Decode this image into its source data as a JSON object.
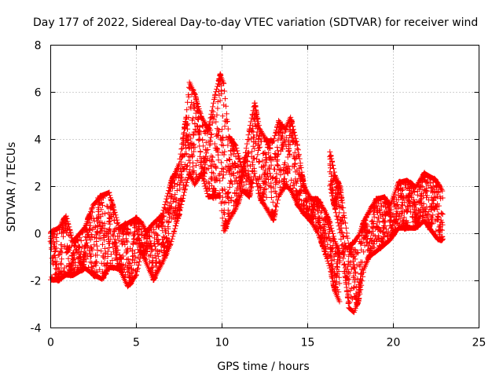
{
  "chart_data": {
    "type": "scatter",
    "title": "Day 177 of 2022, Sidereal Day-to-day VTEC variation (SDTVAR) for receiver wind",
    "xlabel": "GPS time / hours",
    "ylabel": "SDTVAR / TECUs",
    "xlim": [
      0,
      25
    ],
    "ylim": [
      -4,
      8
    ],
    "x_ticks": [
      0,
      5,
      10,
      15,
      20,
      25
    ],
    "y_ticks": [
      -4,
      -2,
      0,
      2,
      4,
      6,
      8
    ],
    "x_tick_labels": [
      "0",
      "5",
      "10",
      "15",
      "20",
      "25"
    ],
    "y_tick_labels": [
      "-4",
      "-2",
      "0",
      "2",
      "4",
      "6",
      "8"
    ],
    "grid": true,
    "marker": "plus",
    "color": "#ff0000",
    "series": [
      {
        "name": "SDTVAR",
        "envelope": [
          {
            "x": 0.0,
            "low": -2.0,
            "high": 0.1
          },
          {
            "x": 0.5,
            "low": -2.0,
            "high": 0.3
          },
          {
            "x": 0.9,
            "low": -1.8,
            "high": 0.8
          },
          {
            "x": 1.3,
            "low": -1.8,
            "high": -0.3
          },
          {
            "x": 2.0,
            "low": -1.5,
            "high": 0.3
          },
          {
            "x": 2.5,
            "low": -1.8,
            "high": 1.3
          },
          {
            "x": 3.0,
            "low": -2.0,
            "high": 1.7
          },
          {
            "x": 3.4,
            "low": -1.5,
            "high": 1.8
          },
          {
            "x": 4.0,
            "low": -1.5,
            "high": 0.3
          },
          {
            "x": 4.5,
            "low": -2.3,
            "high": 0.5
          },
          {
            "x": 5.0,
            "low": -1.8,
            "high": 0.7
          },
          {
            "x": 5.3,
            "low": -0.8,
            "high": 0.5
          },
          {
            "x": 5.6,
            "low": -1.3,
            "high": 0.1
          },
          {
            "x": 6.0,
            "low": -2.0,
            "high": 0.5
          },
          {
            "x": 6.5,
            "low": -1.3,
            "high": 0.8
          },
          {
            "x": 7.0,
            "low": -0.5,
            "high": 2.2
          },
          {
            "x": 7.5,
            "low": 0.8,
            "high": 3.0
          },
          {
            "x": 7.9,
            "low": 2.0,
            "high": 5.0
          },
          {
            "x": 8.1,
            "low": 2.5,
            "high": 6.5
          },
          {
            "x": 8.4,
            "low": 2.0,
            "high": 6.0
          },
          {
            "x": 8.8,
            "low": 2.5,
            "high": 5.0
          },
          {
            "x": 9.2,
            "low": 1.5,
            "high": 4.5
          },
          {
            "x": 9.6,
            "low": 1.5,
            "high": 6.0
          },
          {
            "x": 9.9,
            "low": 1.5,
            "high": 6.8
          },
          {
            "x": 10.1,
            "low": 0.0,
            "high": 6.5
          },
          {
            "x": 10.4,
            "low": 0.5,
            "high": 4.2
          },
          {
            "x": 10.8,
            "low": 1.0,
            "high": 3.8
          },
          {
            "x": 11.2,
            "low": 1.8,
            "high": 2.7
          },
          {
            "x": 11.6,
            "low": 1.5,
            "high": 4.5
          },
          {
            "x": 11.9,
            "low": 2.5,
            "high": 5.6
          },
          {
            "x": 12.2,
            "low": 1.5,
            "high": 4.5
          },
          {
            "x": 12.6,
            "low": 1.0,
            "high": 4.0
          },
          {
            "x": 13.0,
            "low": 0.5,
            "high": 4.0
          },
          {
            "x": 13.3,
            "low": 1.5,
            "high": 4.8
          },
          {
            "x": 13.7,
            "low": 2.0,
            "high": 4.5
          },
          {
            "x": 14.0,
            "low": 1.8,
            "high": 5.0
          },
          {
            "x": 14.4,
            "low": 1.2,
            "high": 3.8
          },
          {
            "x": 14.8,
            "low": 0.8,
            "high": 2.0
          },
          {
            "x": 15.2,
            "low": 0.5,
            "high": 1.5
          },
          {
            "x": 15.6,
            "low": 0.0,
            "high": 1.5
          },
          {
            "x": 16.0,
            "low": -0.8,
            "high": 1.0
          },
          {
            "x": 16.3,
            "low": -1.5,
            "high": 0.5
          },
          {
            "x": 16.6,
            "low": -2.5,
            "high": -0.3
          },
          {
            "x": 16.9,
            "low": -3.0,
            "high": -0.8
          },
          {
            "x": 16.3,
            "low": 2.0,
            "high": 3.5
          },
          {
            "x": 16.6,
            "low": 1.0,
            "high": 2.5
          },
          {
            "x": 16.9,
            "low": 0.0,
            "high": 2.0
          },
          {
            "x": 17.4,
            "low": -3.2,
            "high": -0.5
          },
          {
            "x": 17.7,
            "low": -3.4,
            "high": -0.3
          },
          {
            "x": 18.0,
            "low": -2.8,
            "high": 0.0
          },
          {
            "x": 18.3,
            "low": -1.5,
            "high": 0.6
          },
          {
            "x": 18.6,
            "low": -1.0,
            "high": 1.0
          },
          {
            "x": 19.0,
            "low": -0.8,
            "high": 1.5
          },
          {
            "x": 19.5,
            "low": -0.5,
            "high": 1.6
          },
          {
            "x": 19.8,
            "low": -0.3,
            "high": 1.2
          },
          {
            "x": 20.3,
            "low": 0.2,
            "high": 2.2
          },
          {
            "x": 20.8,
            "low": 0.2,
            "high": 2.3
          },
          {
            "x": 21.3,
            "low": 0.2,
            "high": 2.0
          },
          {
            "x": 21.8,
            "low": 0.5,
            "high": 2.6
          },
          {
            "x": 22.3,
            "low": 0.0,
            "high": 2.4
          },
          {
            "x": 22.6,
            "low": -0.3,
            "high": 2.2
          },
          {
            "x": 22.9,
            "low": -0.3,
            "high": 1.8
          }
        ]
      }
    ]
  }
}
